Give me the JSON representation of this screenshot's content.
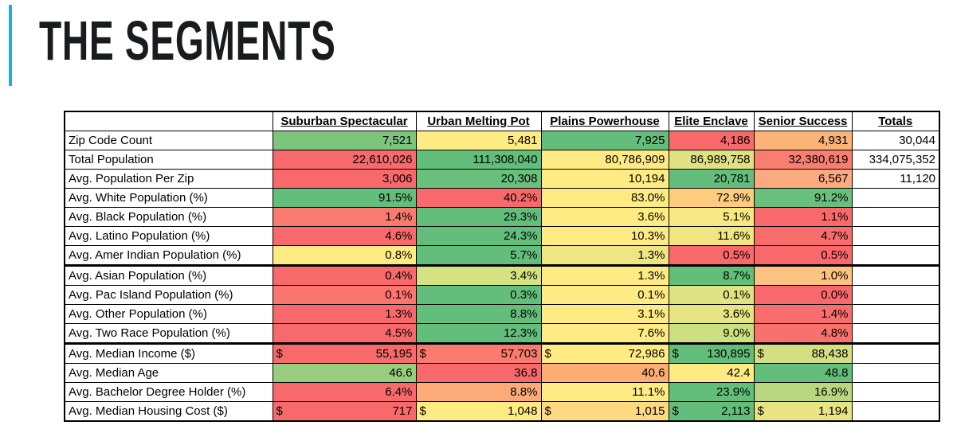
{
  "colors": {
    "accent_bar": "#29A9DC",
    "table_border": "#000000",
    "scale_min_red": "#F8696B",
    "scale_mid_yellow": "#FFEB84",
    "scale_max_green": "#63BE7B"
  },
  "chart_data": {
    "type": "table",
    "title": "THE SEGMENTS",
    "columns": [
      "",
      "Suburban Spectacular",
      "Urban Melting Pot",
      "Plains Powerhouse",
      "Elite Enclave",
      "Senior Success",
      "Totals"
    ],
    "rows": [
      {
        "label": "Zip Code Count",
        "format": "number",
        "thick_bottom": false,
        "total": "30,044",
        "cells": [
          {
            "v": "7,521",
            "c": "#7CC57D"
          },
          {
            "v": "5,481",
            "c": "#FFEB84"
          },
          {
            "v": "7,925",
            "c": "#63BE7B"
          },
          {
            "v": "4,186",
            "c": "#F8696B"
          },
          {
            "v": "4,931",
            "c": "#FBB377"
          }
        ]
      },
      {
        "label": "Total Population",
        "format": "number",
        "thick_bottom": false,
        "total": "334,075,352",
        "cells": [
          {
            "v": "22,610,026",
            "c": "#F8696B"
          },
          {
            "v": "111,308,040",
            "c": "#63BE7B"
          },
          {
            "v": "80,786,909",
            "c": "#FFEB84"
          },
          {
            "v": "86,989,758",
            "c": "#DFE282"
          },
          {
            "v": "32,380,619",
            "c": "#F97E6F"
          }
        ]
      },
      {
        "label": "Avg. Population Per Zip",
        "format": "number",
        "thick_bottom": false,
        "total": "11,120",
        "cells": [
          {
            "v": "3,006",
            "c": "#F8696B"
          },
          {
            "v": "20,308",
            "c": "#69C07C"
          },
          {
            "v": "10,194",
            "c": "#FFEB84"
          },
          {
            "v": "20,781",
            "c": "#63BE7B"
          },
          {
            "v": "6,567",
            "c": "#FBA97F"
          }
        ]
      },
      {
        "label": "Avg. White Population (%)",
        "format": "percent",
        "thick_bottom": false,
        "total": "",
        "cells": [
          {
            "v": "91.5%",
            "c": "#63BE7B"
          },
          {
            "v": "40.2%",
            "c": "#F8696B"
          },
          {
            "v": "83.0%",
            "c": "#FFEB84"
          },
          {
            "v": "72.9%",
            "c": "#FDCC7E"
          },
          {
            "v": "91.2%",
            "c": "#69C07C"
          }
        ]
      },
      {
        "label": "Avg. Black Population (%)",
        "format": "percent",
        "thick_bottom": false,
        "total": "",
        "cells": [
          {
            "v": "1.4%",
            "c": "#F97B6F"
          },
          {
            "v": "29.3%",
            "c": "#63BE7B"
          },
          {
            "v": "3.6%",
            "c": "#FFEB84"
          },
          {
            "v": "5.1%",
            "c": "#F6E984"
          },
          {
            "v": "1.1%",
            "c": "#F8696B"
          }
        ]
      },
      {
        "label": "Avg. Latino Population (%)",
        "format": "percent",
        "thick_bottom": false,
        "total": "",
        "cells": [
          {
            "v": "4.6%",
            "c": "#F8696B"
          },
          {
            "v": "24.3%",
            "c": "#63BE7B"
          },
          {
            "v": "10.3%",
            "c": "#FFEB84"
          },
          {
            "v": "11.6%",
            "c": "#F0E783"
          },
          {
            "v": "4.7%",
            "c": "#F86D6C"
          }
        ]
      },
      {
        "label": "Avg. Amer Indian Population (%)",
        "format": "percent",
        "thick_bottom": true,
        "total": "",
        "cells": [
          {
            "v": "0.8%",
            "c": "#FFEB84"
          },
          {
            "v": "5.7%",
            "c": "#63BE7B"
          },
          {
            "v": "1.3%",
            "c": "#EFE683"
          },
          {
            "v": "0.5%",
            "c": "#F8696B"
          },
          {
            "v": "0.5%",
            "c": "#F8696B"
          }
        ]
      },
      {
        "label": "Avg. Asian Population (%)",
        "format": "percent",
        "thick_bottom": false,
        "total": "",
        "cells": [
          {
            "v": "0.4%",
            "c": "#F8696B"
          },
          {
            "v": "3.4%",
            "c": "#D5E282"
          },
          {
            "v": "1.3%",
            "c": "#FFEB84"
          },
          {
            "v": "8.7%",
            "c": "#63BE7B"
          },
          {
            "v": "1.0%",
            "c": "#FCC27F"
          }
        ]
      },
      {
        "label": "Avg. Pac Island Population (%)",
        "format": "percent",
        "thick_bottom": false,
        "total": "",
        "cells": [
          {
            "v": "0.1%",
            "c": "#F9756E"
          },
          {
            "v": "0.3%",
            "c": "#63BE7B"
          },
          {
            "v": "0.1%",
            "c": "#FFEB84"
          },
          {
            "v": "0.1%",
            "c": "#E0E283"
          },
          {
            "v": "0.0%",
            "c": "#F8696B"
          }
        ]
      },
      {
        "label": "Avg. Other Population (%)",
        "format": "percent",
        "thick_bottom": false,
        "total": "",
        "cells": [
          {
            "v": "1.3%",
            "c": "#F8696B"
          },
          {
            "v": "8.8%",
            "c": "#63BE7B"
          },
          {
            "v": "3.1%",
            "c": "#FFEB84"
          },
          {
            "v": "3.6%",
            "c": "#E6E483"
          },
          {
            "v": "1.4%",
            "c": "#F86E6C"
          }
        ]
      },
      {
        "label": "Avg. Two Race Population (%)",
        "format": "percent",
        "thick_bottom": true,
        "total": "",
        "cells": [
          {
            "v": "4.5%",
            "c": "#F8696B"
          },
          {
            "v": "12.3%",
            "c": "#63BE7B"
          },
          {
            "v": "7.6%",
            "c": "#FFEB84"
          },
          {
            "v": "9.0%",
            "c": "#CCE081"
          },
          {
            "v": "4.8%",
            "c": "#F8716D"
          }
        ]
      },
      {
        "label": "Avg. Median Income ($)",
        "format": "money",
        "thick_bottom": false,
        "total": "",
        "cells": [
          {
            "v": "55,195",
            "c": "#F8696B"
          },
          {
            "v": "57,703",
            "c": "#F97B6F"
          },
          {
            "v": "72,986",
            "c": "#FFEB84"
          },
          {
            "v": "130,895",
            "c": "#63BE7B"
          },
          {
            "v": "88,438",
            "c": "#D5DF82"
          }
        ]
      },
      {
        "label": "Avg. Median Age",
        "format": "decimal",
        "thick_bottom": false,
        "total": "",
        "cells": [
          {
            "v": "46.6",
            "c": "#99CD7E"
          },
          {
            "v": "36.8",
            "c": "#F8696B"
          },
          {
            "v": "40.6",
            "c": "#FBAD74"
          },
          {
            "v": "42.4",
            "c": "#FFEB84"
          },
          {
            "v": "48.8",
            "c": "#63BE7B"
          }
        ]
      },
      {
        "label": "Avg. Bachelor Degree Holder (%)",
        "format": "percent",
        "thick_bottom": false,
        "total": "",
        "cells": [
          {
            "v": "6.4%",
            "c": "#F8696B"
          },
          {
            "v": "8.8%",
            "c": "#FCAB78"
          },
          {
            "v": "11.1%",
            "c": "#FFEB84"
          },
          {
            "v": "23.9%",
            "c": "#63BE7B"
          },
          {
            "v": "16.9%",
            "c": "#B8D780"
          }
        ]
      },
      {
        "label": "Avg. Median Housing Cost ($)",
        "format": "money",
        "thick_bottom": false,
        "total": "",
        "cells": [
          {
            "v": "717",
            "c": "#F8696B"
          },
          {
            "v": "1,048",
            "c": "#FFEB84"
          },
          {
            "v": "1,015",
            "c": "#FDD981"
          },
          {
            "v": "2,113",
            "c": "#63BE7B"
          },
          {
            "v": "1,194",
            "c": "#E9E483"
          }
        ]
      }
    ],
    "money_symbol": "$",
    "legend_note": "red-yellow-green 3-color scale per row"
  }
}
